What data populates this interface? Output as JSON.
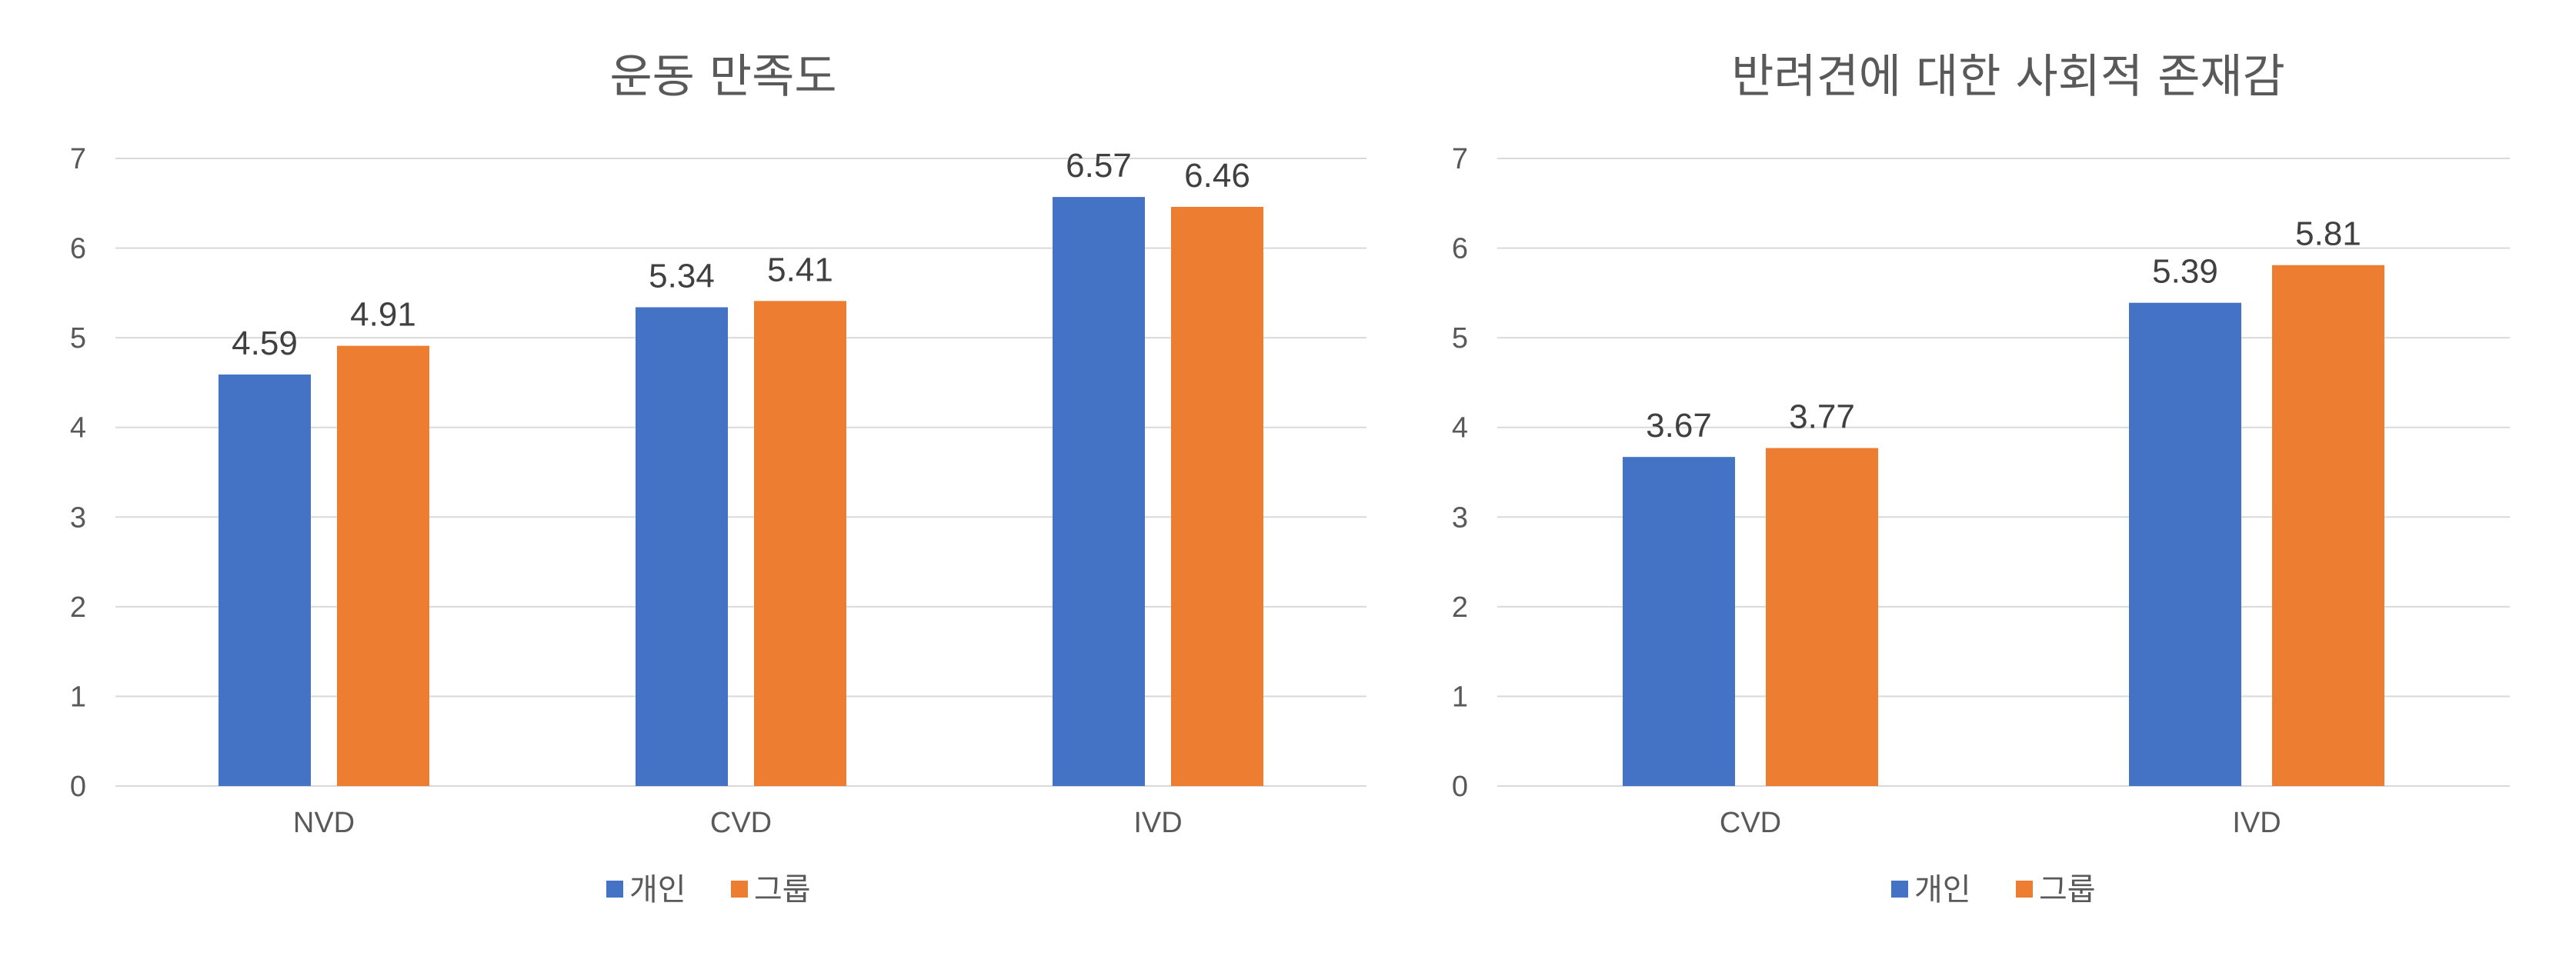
{
  "colors": {
    "series_1": "#4472C4",
    "series_2": "#ED7D31",
    "grid": "#D9D9D9",
    "text": "#595959"
  },
  "chart_data": [
    {
      "type": "bar",
      "title": "운동 만족도",
      "categories": [
        "NVD",
        "CVD",
        "IVD"
      ],
      "series": [
        {
          "name": "개인",
          "values": [
            4.59,
            5.34,
            6.57
          ]
        },
        {
          "name": "그룹",
          "values": [
            4.91,
            5.41,
            6.46
          ]
        }
      ],
      "ylim": [
        0,
        7
      ],
      "yticks": [
        0,
        1,
        2,
        3,
        4,
        5,
        6,
        7
      ],
      "grid": true,
      "legend": "bottom"
    },
    {
      "type": "bar",
      "title": "반려견에 대한 사회적 존재감",
      "categories": [
        "CVD",
        "IVD"
      ],
      "series": [
        {
          "name": "개인",
          "values": [
            3.67,
            5.39
          ]
        },
        {
          "name": "그룹",
          "values": [
            3.77,
            5.81
          ]
        }
      ],
      "ylim": [
        0,
        7
      ],
      "yticks": [
        0,
        1,
        2,
        3,
        4,
        5,
        6,
        7
      ],
      "grid": true,
      "legend": "bottom"
    }
  ]
}
